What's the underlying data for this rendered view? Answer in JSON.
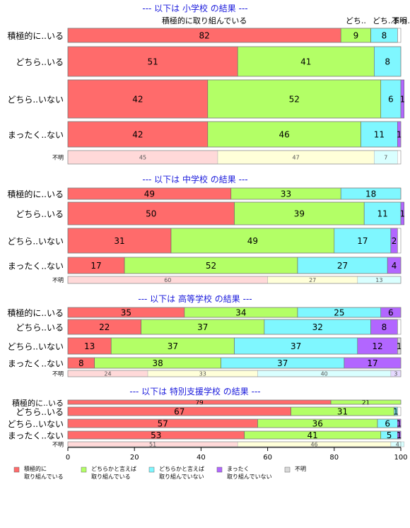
{
  "chart_data": {
    "type": "bar",
    "stacked": true,
    "orientation": "horizontal",
    "xlim": [
      0,
      100
    ],
    "xticks": [
      0,
      20,
      40,
      60,
      80,
      100
    ],
    "series_colors": [
      "#ff6b6b",
      "#b3ff66",
      "#7ff7ff",
      "#b266ff",
      "#d9d9d9"
    ],
    "legend": {
      "placement": "bottom-left",
      "entries": [
        {
          "name": "積極的に\n取り組んでいる",
          "color": "#ff6b6b"
        },
        {
          "name": "どちらかと言えば\n取り組んでいる",
          "color": "#b3ff66"
        },
        {
          "name": "どちらかと言えば\n取り組んでいない",
          "color": "#7ff7ff"
        },
        {
          "name": "まったく\n取り組んでいない",
          "color": "#b266ff"
        },
        {
          "name": "不明",
          "color": "#d9d9d9"
        }
      ]
    },
    "panels": [
      {
        "title": "--- 以下は 小学校 の結果 ---",
        "top_labels": [
          "積極的に取り組んでいる",
          "どち..",
          "どち..",
          "不明",
          "まっ..."
        ],
        "rows": [
          {
            "label": "積極的に..いる",
            "values": [
              82,
              9,
              8,
              0,
              0
            ]
          },
          {
            "label": "どちら..いる",
            "values": [
              51,
              41,
              8,
              0,
              0
            ]
          },
          {
            "label": "どちら..いない",
            "values": [
              42,
              52,
              6,
              1,
              0
            ]
          },
          {
            "label": "まったく..ない",
            "values": [
              42,
              46,
              11,
              1,
              0
            ]
          },
          {
            "label": "不明",
            "values": [
              45,
              47,
              7,
              0,
              0
            ],
            "faded": true
          }
        ]
      },
      {
        "title": "--- 以下は 中学校 の結果 ---",
        "rows": [
          {
            "label": "積極的に..いる",
            "values": [
              49,
              33,
              18,
              0,
              0
            ]
          },
          {
            "label": "どちら..いる",
            "values": [
              50,
              39,
              11,
              1,
              0
            ]
          },
          {
            "label": "どちら..いない",
            "values": [
              31,
              49,
              17,
              2,
              0
            ]
          },
          {
            "label": "まったく..ない",
            "values": [
              17,
              52,
              27,
              4,
              0
            ]
          },
          {
            "label": "不明",
            "values": [
              60,
              27,
              13,
              0,
              0
            ],
            "faded": true
          }
        ]
      },
      {
        "title": "--- 以下は 高等学校 の結果 ---",
        "rows": [
          {
            "label": "積極的に..いる",
            "values": [
              35,
              34,
              25,
              6,
              0
            ]
          },
          {
            "label": "どちら..いる",
            "values": [
              22,
              37,
              32,
              8,
              0
            ]
          },
          {
            "label": "どちら..いない",
            "values": [
              13,
              37,
              37,
              12,
              1
            ]
          },
          {
            "label": "まったく..ない",
            "values": [
              8,
              38,
              37,
              17,
              0
            ]
          },
          {
            "label": "不明",
            "values": [
              24,
              33,
              40,
              3,
              0
            ],
            "faded": true
          }
        ]
      },
      {
        "title": "--- 以下は 特別支援学校 の結果 ---",
        "rows": [
          {
            "label": "積極的に..いる",
            "values": [
              79,
              21,
              0,
              0,
              0
            ]
          },
          {
            "label": "どちら..いる",
            "values": [
              67,
              31,
              1,
              0,
              0
            ]
          },
          {
            "label": "どちら..いない",
            "values": [
              57,
              36,
              6,
              1,
              0
            ]
          },
          {
            "label": "まったく..ない",
            "values": [
              53,
              41,
              5,
              1,
              0
            ]
          },
          {
            "label": "不明",
            "values": [
              51,
              46,
              4,
              0,
              0
            ],
            "faded": true
          }
        ]
      }
    ]
  }
}
